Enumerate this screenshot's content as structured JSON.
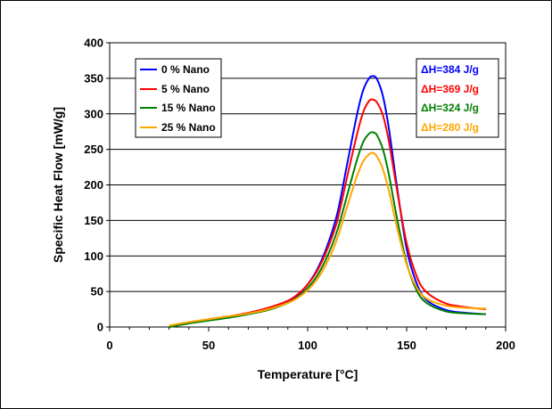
{
  "chart_data": {
    "type": "line",
    "title": "",
    "xlabel": "Temperature [°C]",
    "ylabel": "Specific Heat Flow [mW/g]",
    "xlim": [
      0,
      200
    ],
    "ylim": [
      0,
      400
    ],
    "xticks": [
      "0",
      "50",
      "100",
      "150",
      "200"
    ],
    "yticks": [
      "0",
      "50",
      "100",
      "150",
      "200",
      "250",
      "300",
      "350",
      "400"
    ],
    "grid": "horizontal",
    "legend_position": "top-left",
    "series": [
      {
        "name": "0 % Nano",
        "color": "#0000ff",
        "enthalpy_label": "ΔH=384 J/g",
        "x": [
          30,
          40,
          50,
          60,
          70,
          80,
          90,
          95,
          100,
          105,
          110,
          115,
          120,
          125,
          128,
          131,
          133,
          135,
          138,
          141,
          145,
          150,
          155,
          160,
          170,
          180,
          190
        ],
        "y": [
          0,
          6,
          10,
          14,
          19,
          26,
          36,
          45,
          60,
          82,
          115,
          160,
          230,
          300,
          333,
          350,
          353,
          349,
          325,
          280,
          200,
          110,
          62,
          38,
          24,
          20,
          18
        ]
      },
      {
        "name": "5 % Nano",
        "color": "#ff0000",
        "enthalpy_label": "ΔH=369 J/g",
        "x": [
          30,
          40,
          50,
          60,
          70,
          80,
          90,
          95,
          100,
          105,
          110,
          115,
          120,
          125,
          128,
          131,
          133,
          135,
          138,
          141,
          145,
          150,
          155,
          160,
          170,
          180,
          190
        ],
        "y": [
          0,
          6,
          11,
          15,
          20,
          27,
          37,
          46,
          60,
          80,
          110,
          150,
          212,
          272,
          302,
          318,
          320,
          316,
          298,
          262,
          195,
          118,
          72,
          49,
          33,
          28,
          25
        ]
      },
      {
        "name": "15 % Nano",
        "color": "#008000",
        "enthalpy_label": "ΔH=324 J/g",
        "x": [
          30,
          40,
          50,
          60,
          70,
          80,
          90,
          95,
          100,
          105,
          110,
          115,
          120,
          125,
          128,
          131,
          133,
          135,
          138,
          141,
          145,
          150,
          155,
          160,
          170,
          180,
          190
        ],
        "y": [
          0,
          5,
          9,
          13,
          18,
          24,
          34,
          42,
          55,
          73,
          100,
          136,
          186,
          236,
          260,
          272,
          274,
          270,
          250,
          215,
          155,
          90,
          52,
          34,
          22,
          19,
          18
        ]
      },
      {
        "name": "25 % Nano",
        "color": "#ffa500",
        "enthalpy_label": "ΔH=280 J/g",
        "x": [
          30,
          40,
          50,
          60,
          70,
          80,
          90,
          95,
          100,
          105,
          110,
          115,
          120,
          125,
          128,
          131,
          133,
          135,
          138,
          141,
          145,
          150,
          155,
          160,
          170,
          180,
          190
        ],
        "y": [
          2,
          7,
          11,
          15,
          19,
          25,
          34,
          41,
          52,
          68,
          92,
          125,
          170,
          213,
          233,
          243,
          245,
          240,
          222,
          192,
          142,
          88,
          56,
          40,
          30,
          27,
          26
        ]
      }
    ]
  }
}
